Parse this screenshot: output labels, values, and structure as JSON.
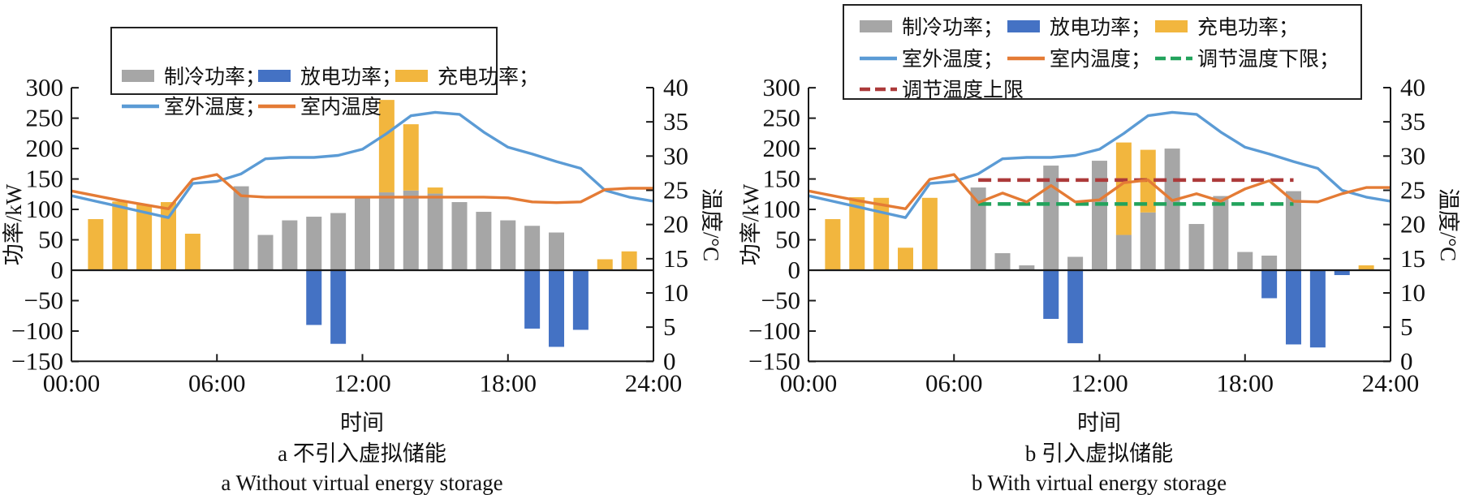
{
  "colors": {
    "cooling_bar": "#A6A6A6",
    "discharge_bar": "#4472C4",
    "charge_bar": "#F2B63E",
    "outdoor_line": "#5B9BD5",
    "indoor_line": "#E47B35",
    "upper_limit_line": "#AC3A3A",
    "lower_limit_line": "#22A35C",
    "axis": "#1a1a1a"
  },
  "chart_data": [
    {
      "id": "a",
      "type": "bar+line combo",
      "caption_zh": "a  不引入虚拟储能",
      "caption_en": "a  Without virtual energy storage",
      "xlabel": "时间",
      "ylabel_left": "功率/kW",
      "ylabel_right": "温度/°C",
      "x_tick_hours": [
        0,
        6,
        12,
        18,
        24
      ],
      "x_tick_labels": [
        "00:00",
        "06:00",
        "12:00",
        "18:00",
        "24:00"
      ],
      "y_left_range": [
        -150,
        300
      ],
      "y_left_tick_values": [
        300,
        250,
        200,
        150,
        100,
        50,
        0,
        -50,
        -100,
        -150
      ],
      "y_left_tick_labels": [
        "300",
        "250",
        "200",
        "150",
        "100",
        "50",
        "0",
        "−50",
        "−100",
        "−150"
      ],
      "y_right_range": [
        0,
        40
      ],
      "y_right_tick_values": [
        40,
        35,
        30,
        25,
        20,
        15,
        10,
        5,
        0
      ],
      "y_right_tick_labels": [
        "40",
        "35",
        "30",
        "25",
        "20",
        "15",
        "10",
        "5",
        "0"
      ],
      "bars": {
        "cooling_kw": [
          0,
          0,
          0,
          0,
          0,
          0,
          0,
          138,
          58,
          82,
          88,
          94,
          119,
          128,
          131,
          126,
          112,
          96,
          82,
          73,
          62,
          0,
          0,
          0
        ],
        "charge_kw": [
          0,
          84,
          113,
          108,
          112,
          60,
          0,
          0,
          0,
          0,
          0,
          0,
          0,
          152,
          109,
          10,
          0,
          0,
          0,
          0,
          0,
          0,
          18,
          31
        ],
        "discharge_kw": [
          0,
          0,
          0,
          0,
          0,
          0,
          0,
          0,
          0,
          0,
          -90,
          -121,
          0,
          0,
          0,
          0,
          0,
          0,
          0,
          -96,
          -126,
          -98,
          0,
          0
        ]
      },
      "lines": {
        "outdoor_temp_c": [
          24.2,
          23.4,
          22.6,
          21.8,
          21.0,
          26.0,
          26.3,
          27.4,
          29.6,
          29.8,
          29.8,
          30.1,
          31.0,
          33.3,
          35.9,
          36.4,
          36.1,
          33.5,
          31.3,
          30.3,
          29.2,
          28.2,
          25.0,
          24.0,
          23.4
        ],
        "indoor_temp_c": [
          24.9,
          24.2,
          23.5,
          22.9,
          22.3,
          26.6,
          27.3,
          24.2,
          24.0,
          24.0,
          24.0,
          24.0,
          24.0,
          24.0,
          24.0,
          24.0,
          24.0,
          24.0,
          23.9,
          23.3,
          23.2,
          23.3,
          25.1,
          25.3,
          25.3
        ]
      },
      "legend_rows": [
        [
          {
            "series": "cooling",
            "swatch": "bar",
            "label": "制冷功率；"
          },
          {
            "series": "discharge",
            "swatch": "bar",
            "label": "放电功率；"
          },
          {
            "series": "charge",
            "swatch": "bar",
            "label": "充电功率；"
          }
        ],
        [
          {
            "series": "outdoor",
            "swatch": "line",
            "label": "室外温度；"
          },
          {
            "series": "indoor",
            "swatch": "line",
            "label": "室内温度"
          }
        ]
      ]
    },
    {
      "id": "b",
      "type": "bar+line combo",
      "caption_zh": "b  引入虚拟储能",
      "caption_en": "b  With virtual energy storage",
      "xlabel": "时间",
      "ylabel_left": "功率/kW",
      "ylabel_right": "温度/°C",
      "x_tick_hours": [
        0,
        6,
        12,
        18,
        24
      ],
      "x_tick_labels": [
        "00:00",
        "06:00",
        "12:00",
        "18:00",
        "24:00"
      ],
      "y_left_range": [
        -150,
        300
      ],
      "y_left_tick_values": [
        300,
        250,
        200,
        150,
        100,
        50,
        0,
        -50,
        -100,
        -150
      ],
      "y_left_tick_labels": [
        "300",
        "250",
        "200",
        "150",
        "100",
        "50",
        "0",
        "−50",
        "−100",
        "−150"
      ],
      "y_right_range": [
        0,
        40
      ],
      "y_right_tick_values": [
        40,
        35,
        30,
        25,
        20,
        15,
        10,
        5,
        0
      ],
      "y_right_tick_labels": [
        "40",
        "35",
        "30",
        "25",
        "20",
        "15",
        "10",
        "5",
        "0"
      ],
      "bars": {
        "cooling_kw": [
          0,
          0,
          0,
          0,
          0,
          0,
          0,
          136,
          28,
          8,
          172,
          22,
          180,
          58,
          95,
          200,
          76,
          122,
          30,
          24,
          130,
          0,
          0,
          0
        ],
        "charge_kw": [
          0,
          84,
          120,
          119,
          37,
          119,
          0,
          0,
          0,
          0,
          0,
          0,
          0,
          152,
          103,
          0,
          0,
          0,
          0,
          0,
          0,
          0,
          0,
          8
        ],
        "discharge_kw": [
          0,
          0,
          0,
          0,
          0,
          0,
          0,
          0,
          0,
          0,
          -80,
          -120,
          0,
          0,
          0,
          0,
          0,
          0,
          0,
          -46,
          -122,
          -127,
          -8,
          0
        ]
      },
      "lines": {
        "outdoor_temp_c": [
          24.2,
          23.4,
          22.6,
          21.8,
          21.0,
          26.0,
          26.3,
          27.4,
          29.6,
          29.8,
          29.8,
          30.1,
          31.0,
          33.3,
          35.9,
          36.4,
          36.1,
          33.5,
          31.3,
          30.3,
          29.2,
          28.2,
          25.0,
          24.0,
          23.4
        ],
        "indoor_temp_c": [
          24.9,
          24.2,
          23.5,
          22.9,
          22.3,
          26.6,
          27.3,
          23.2,
          24.6,
          23.3,
          25.7,
          23.3,
          23.6,
          26.1,
          26.5,
          23.5,
          24.5,
          23.4,
          25.2,
          26.4,
          23.4,
          23.3,
          24.5,
          25.4,
          25.4
        ]
      },
      "limits": {
        "upper_c": 26.5,
        "lower_c": 23.0,
        "from_hour": 7,
        "to_hour": 20
      },
      "legend_rows": [
        [
          {
            "series": "cooling",
            "swatch": "bar",
            "label": "制冷功率；"
          },
          {
            "series": "discharge",
            "swatch": "bar",
            "label": "放电功率；"
          },
          {
            "series": "charge",
            "swatch": "bar",
            "label": "充电功率；"
          }
        ],
        [
          {
            "series": "outdoor",
            "swatch": "line",
            "label": "室外温度；"
          },
          {
            "series": "indoor",
            "swatch": "line",
            "label": "室内温度；"
          },
          {
            "series": "lower",
            "swatch": "dash",
            "label": "调节温度下限；"
          }
        ],
        [
          {
            "series": "upper",
            "swatch": "dash",
            "label": "调节温度上限"
          }
        ]
      ]
    }
  ]
}
